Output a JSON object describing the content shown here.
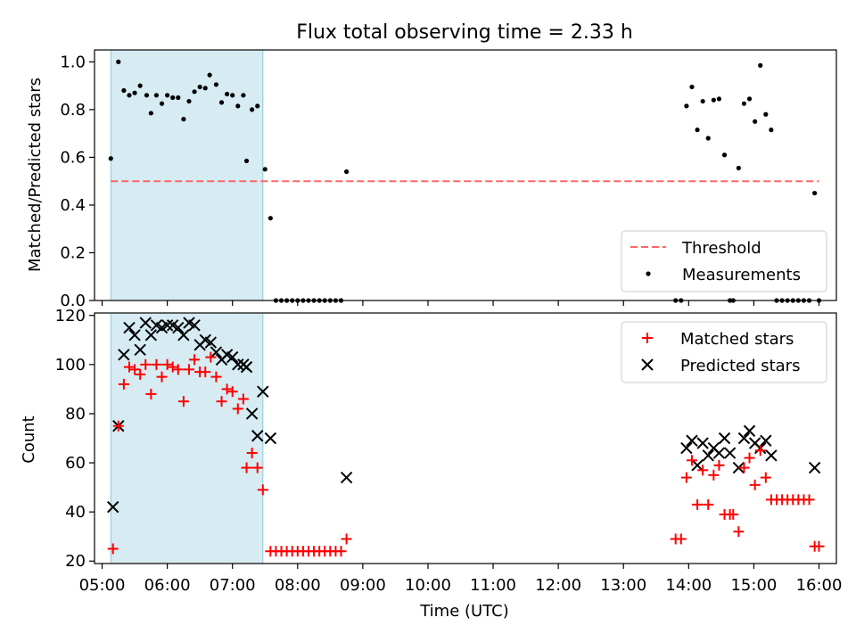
{
  "chart_data": [
    {
      "type": "scatter",
      "title": "Flux total observing time = 2.33 h",
      "xlabel": "",
      "ylabel": "Matched/Predicted stars",
      "x_unit": "UTC hours",
      "xlim": [
        "04:53",
        "16:16"
      ],
      "ylim": [
        0,
        1.05
      ],
      "yticks": [
        "0.0",
        "0.2",
        "0.4",
        "0.6",
        "0.8",
        "1.0"
      ],
      "grid": false,
      "legend_position": "lower right",
      "observing_window": {
        "start": "05:08",
        "end": "07:28",
        "color": "#add8e6"
      },
      "threshold": {
        "name": "Threshold",
        "value": 0.5,
        "x_range": [
          "05:08",
          "16:00"
        ],
        "color": "#ff6666"
      },
      "series": [
        {
          "name": "Measurements",
          "color": "#000000",
          "points": [
            [
              "05:08",
              0.595
            ],
            [
              "05:15",
              1.0
            ],
            [
              "05:20",
              0.88
            ],
            [
              "05:25",
              0.86
            ],
            [
              "05:30",
              0.87
            ],
            [
              "05:35",
              0.9
            ],
            [
              "05:41",
              0.86
            ],
            [
              "05:45",
              0.785
            ],
            [
              "05:50",
              0.86
            ],
            [
              "05:55",
              0.825
            ],
            [
              "06:00",
              0.86
            ],
            [
              "06:05",
              0.85
            ],
            [
              "06:10",
              0.85
            ],
            [
              "06:15",
              0.76
            ],
            [
              "06:20",
              0.835
            ],
            [
              "06:25",
              0.875
            ],
            [
              "06:30",
              0.895
            ],
            [
              "06:35",
              0.89
            ],
            [
              "06:39",
              0.945
            ],
            [
              "06:45",
              0.905
            ],
            [
              "06:50",
              0.83
            ],
            [
              "06:55",
              0.865
            ],
            [
              "07:00",
              0.86
            ],
            [
              "07:05",
              0.815
            ],
            [
              "07:10",
              0.86
            ],
            [
              "07:13",
              0.585
            ],
            [
              "07:18",
              0.8
            ],
            [
              "07:23",
              0.815
            ],
            [
              "07:30",
              0.55
            ],
            [
              "07:35",
              0.345
            ],
            [
              "07:40",
              0.0
            ],
            [
              "07:45",
              0.0
            ],
            [
              "07:50",
              0.0
            ],
            [
              "07:55",
              0.0
            ],
            [
              "08:00",
              0.0
            ],
            [
              "08:05",
              0.0
            ],
            [
              "08:10",
              0.0
            ],
            [
              "08:15",
              0.0
            ],
            [
              "08:20",
              0.0
            ],
            [
              "08:25",
              0.0
            ],
            [
              "08:30",
              0.0
            ],
            [
              "08:35",
              0.0
            ],
            [
              "08:40",
              0.0
            ],
            [
              "08:45",
              0.54
            ],
            [
              "13:48",
              0.0
            ],
            [
              "13:53",
              0.0
            ],
            [
              "13:58",
              0.815
            ],
            [
              "14:03",
              0.895
            ],
            [
              "14:08",
              0.715
            ],
            [
              "14:13",
              0.835
            ],
            [
              "14:18",
              0.68
            ],
            [
              "14:23",
              0.84
            ],
            [
              "14:28",
              0.845
            ],
            [
              "14:33",
              0.61
            ],
            [
              "14:38",
              0.0
            ],
            [
              "14:41",
              0.0
            ],
            [
              "14:46",
              0.555
            ],
            [
              "14:51",
              0.825
            ],
            [
              "14:56",
              0.845
            ],
            [
              "15:01",
              0.75
            ],
            [
              "15:06",
              0.985
            ],
            [
              "15:11",
              0.78
            ],
            [
              "15:16",
              0.715
            ],
            [
              "15:21",
              0.0
            ],
            [
              "15:26",
              0.0
            ],
            [
              "15:31",
              0.0
            ],
            [
              "15:36",
              0.0
            ],
            [
              "15:41",
              0.0
            ],
            [
              "15:46",
              0.0
            ],
            [
              "15:51",
              0.0
            ],
            [
              "15:56",
              0.45
            ],
            [
              "16:00",
              0.0
            ]
          ]
        }
      ]
    },
    {
      "type": "scatter",
      "title": "",
      "xlabel": "Time (UTC)",
      "ylabel": "Count",
      "xlim": [
        "04:53",
        "16:16"
      ],
      "ylim": [
        19,
        121
      ],
      "xticks": [
        "05:00",
        "06:00",
        "07:00",
        "08:00",
        "09:00",
        "10:00",
        "11:00",
        "12:00",
        "13:00",
        "14:00",
        "15:00",
        "16:00"
      ],
      "yticks": [
        "20",
        "40",
        "60",
        "80",
        "100",
        "120"
      ],
      "grid": false,
      "legend_position": "upper right",
      "observing_window": {
        "start": "05:08",
        "end": "07:28",
        "color": "#add8e6"
      },
      "series": [
        {
          "name": "Matched stars",
          "marker": "+",
          "color": "#ff0000",
          "points": [
            [
              "05:10",
              25
            ],
            [
              "05:15",
              75
            ],
            [
              "05:20",
              92
            ],
            [
              "05:25",
              99
            ],
            [
              "05:30",
              98
            ],
            [
              "05:35",
              96
            ],
            [
              "05:40",
              100
            ],
            [
              "05:45",
              88
            ],
            [
              "05:50",
              100
            ],
            [
              "05:55",
              95
            ],
            [
              "06:00",
              100
            ],
            [
              "06:05",
              99
            ],
            [
              "06:10",
              98
            ],
            [
              "06:15",
              85
            ],
            [
              "06:20",
              98
            ],
            [
              "06:25",
              102
            ],
            [
              "06:30",
              97
            ],
            [
              "06:35",
              97
            ],
            [
              "06:40",
              103
            ],
            [
              "06:45",
              95
            ],
            [
              "06:50",
              85
            ],
            [
              "06:55",
              90
            ],
            [
              "07:00",
              89
            ],
            [
              "07:05",
              82
            ],
            [
              "07:10",
              86
            ],
            [
              "07:13",
              58
            ],
            [
              "07:18",
              64
            ],
            [
              "07:23",
              58
            ],
            [
              "07:28",
              49
            ],
            [
              "07:35",
              24
            ],
            [
              "07:40",
              24
            ],
            [
              "07:45",
              24
            ],
            [
              "07:50",
              24
            ],
            [
              "07:55",
              24
            ],
            [
              "08:00",
              24
            ],
            [
              "08:05",
              24
            ],
            [
              "08:10",
              24
            ],
            [
              "08:15",
              24
            ],
            [
              "08:20",
              24
            ],
            [
              "08:25",
              24
            ],
            [
              "08:30",
              24
            ],
            [
              "08:35",
              24
            ],
            [
              "08:40",
              24
            ],
            [
              "08:45",
              29
            ],
            [
              "13:48",
              29
            ],
            [
              "13:53",
              29
            ],
            [
              "13:58",
              54
            ],
            [
              "14:03",
              61
            ],
            [
              "14:08",
              43
            ],
            [
              "14:13",
              57
            ],
            [
              "14:18",
              43
            ],
            [
              "14:23",
              55
            ],
            [
              "14:28",
              59
            ],
            [
              "14:33",
              39
            ],
            [
              "14:38",
              39
            ],
            [
              "14:41",
              39
            ],
            [
              "14:46",
              32
            ],
            [
              "14:51",
              58
            ],
            [
              "14:56",
              62
            ],
            [
              "15:01",
              51
            ],
            [
              "15:06",
              65
            ],
            [
              "15:11",
              54
            ],
            [
              "15:16",
              45
            ],
            [
              "15:21",
              45
            ],
            [
              "15:26",
              45
            ],
            [
              "15:31",
              45
            ],
            [
              "15:36",
              45
            ],
            [
              "15:41",
              45
            ],
            [
              "15:46",
              45
            ],
            [
              "15:51",
              45
            ],
            [
              "15:56",
              26
            ],
            [
              "16:00",
              26
            ]
          ]
        },
        {
          "name": "Predicted stars",
          "marker": "x",
          "color": "#000000",
          "points": [
            [
              "05:10",
              42
            ],
            [
              "05:15",
              75
            ],
            [
              "05:20",
              104
            ],
            [
              "05:25",
              115
            ],
            [
              "05:30",
              112
            ],
            [
              "05:35",
              106
            ],
            [
              "05:40",
              117
            ],
            [
              "05:45",
              112
            ],
            [
              "05:50",
              116
            ],
            [
              "05:55",
              115
            ],
            [
              "06:00",
              116
            ],
            [
              "06:05",
              116
            ],
            [
              "06:10",
              115
            ],
            [
              "06:15",
              112
            ],
            [
              "06:20",
              117
            ],
            [
              "06:25",
              116
            ],
            [
              "06:30",
              108
            ],
            [
              "06:35",
              110
            ],
            [
              "06:40",
              109
            ],
            [
              "06:45",
              105
            ],
            [
              "06:50",
              102
            ],
            [
              "06:55",
              104
            ],
            [
              "07:00",
              103
            ],
            [
              "07:05",
              100
            ],
            [
              "07:10",
              100
            ],
            [
              "07:13",
              99
            ],
            [
              "07:18",
              80
            ],
            [
              "07:23",
              71
            ],
            [
              "07:28",
              89
            ],
            [
              "07:35",
              70
            ],
            [
              "08:45",
              54
            ],
            [
              "13:58",
              66
            ],
            [
              "14:03",
              69
            ],
            [
              "14:08",
              59
            ],
            [
              "14:13",
              68
            ],
            [
              "14:18",
              63
            ],
            [
              "14:23",
              66
            ],
            [
              "14:28",
              64
            ],
            [
              "14:33",
              70
            ],
            [
              "14:38",
              64
            ],
            [
              "14:46",
              58
            ],
            [
              "14:51",
              70
            ],
            [
              "14:56",
              73
            ],
            [
              "15:01",
              68
            ],
            [
              "15:06",
              66
            ],
            [
              "15:11",
              69
            ],
            [
              "15:16",
              63
            ],
            [
              "15:56",
              58
            ]
          ]
        }
      ]
    }
  ]
}
